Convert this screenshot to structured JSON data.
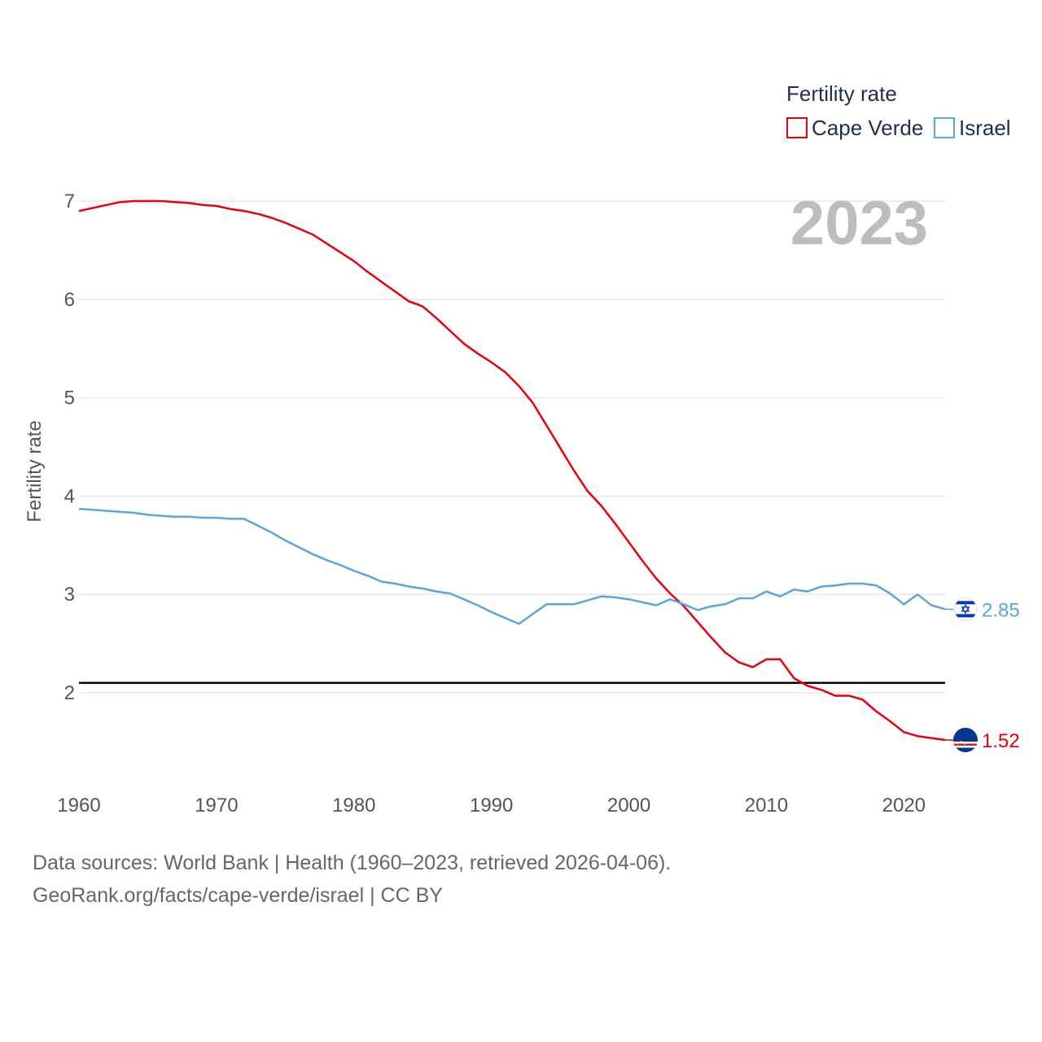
{
  "chart_data": {
    "type": "line",
    "title": "",
    "legend_title": "Fertility rate",
    "year_label": "2023",
    "xlabel": "",
    "ylabel": "Fertility rate",
    "xlim": [
      1960,
      2023
    ],
    "ylim": [
      1.0,
      7.3
    ],
    "xticks": [
      1960,
      1970,
      1980,
      1990,
      2000,
      2010,
      2020
    ],
    "yticks": [
      2,
      3,
      4,
      5,
      6,
      7
    ],
    "reference_line": 2.1,
    "series": [
      {
        "name": "Cape Verde",
        "color": "#e8000b",
        "end_label": "1.52",
        "flag": "cape-verde-flag-icon",
        "x": [
          1960,
          1961,
          1962,
          1963,
          1964,
          1965,
          1966,
          1967,
          1968,
          1969,
          1970,
          1971,
          1972,
          1973,
          1974,
          1975,
          1976,
          1977,
          1978,
          1979,
          1980,
          1981,
          1982,
          1983,
          1984,
          1985,
          1986,
          1987,
          1988,
          1989,
          1990,
          1991,
          1992,
          1993,
          1994,
          1995,
          1996,
          1997,
          1998,
          1999,
          2000,
          2001,
          2002,
          2003,
          2004,
          2005,
          2006,
          2007,
          2008,
          2009,
          2010,
          2011,
          2012,
          2013,
          2014,
          2015,
          2016,
          2017,
          2018,
          2019,
          2020,
          2021,
          2022,
          2023
        ],
        "values": [
          6.9,
          6.93,
          6.96,
          6.99,
          7.0,
          7.0,
          7.0,
          6.99,
          6.98,
          6.96,
          6.95,
          6.92,
          6.9,
          6.87,
          6.83,
          6.78,
          6.72,
          6.66,
          6.57,
          6.48,
          6.39,
          6.28,
          6.18,
          6.08,
          5.98,
          5.93,
          5.81,
          5.68,
          5.55,
          5.45,
          5.36,
          5.26,
          5.12,
          4.95,
          4.72,
          4.49,
          4.26,
          4.05,
          3.9,
          3.72,
          3.53,
          3.34,
          3.16,
          3.01,
          2.88,
          2.72,
          2.56,
          2.41,
          2.31,
          2.26,
          2.34,
          2.34,
          2.15,
          2.07,
          2.03,
          1.97,
          1.97,
          1.93,
          1.81,
          1.71,
          1.6,
          1.56,
          1.54,
          1.52
        ]
      },
      {
        "name": "Israel",
        "color": "#5ba3e3",
        "end_label": "2.85",
        "flag": "israel-flag-icon",
        "x": [
          1960,
          1961,
          1962,
          1963,
          1964,
          1965,
          1966,
          1967,
          1968,
          1969,
          1970,
          1971,
          1972,
          1973,
          1974,
          1975,
          1976,
          1977,
          1978,
          1979,
          1980,
          1981,
          1982,
          1983,
          1984,
          1985,
          1986,
          1987,
          1988,
          1989,
          1990,
          1991,
          1992,
          1993,
          1994,
          1995,
          1996,
          1997,
          1998,
          1999,
          2000,
          2001,
          2002,
          2003,
          2004,
          2005,
          2006,
          2007,
          2008,
          2009,
          2010,
          2011,
          2012,
          2013,
          2014,
          2015,
          2016,
          2017,
          2018,
          2019,
          2020,
          2021,
          2022,
          2023
        ],
        "values": [
          3.87,
          3.86,
          3.85,
          3.84,
          3.83,
          3.81,
          3.8,
          3.79,
          3.79,
          3.78,
          3.78,
          3.77,
          3.77,
          3.7,
          3.63,
          3.55,
          3.48,
          3.41,
          3.35,
          3.3,
          3.24,
          3.19,
          3.13,
          3.11,
          3.08,
          3.06,
          3.03,
          3.01,
          2.95,
          2.89,
          2.82,
          2.76,
          2.7,
          2.8,
          2.9,
          2.9,
          2.9,
          2.94,
          2.98,
          2.97,
          2.95,
          2.92,
          2.89,
          2.95,
          2.9,
          2.84,
          2.88,
          2.9,
          2.96,
          2.96,
          3.03,
          2.98,
          3.05,
          3.03,
          3.08,
          3.09,
          3.11,
          3.11,
          3.09,
          3.01,
          2.9,
          3.0,
          2.89,
          2.85
        ]
      }
    ]
  },
  "footer": {
    "source_line": "Data sources: World Bank | Health (1960–2023, retrieved 2026-04-06).",
    "credit_line": "GeoRank.org/facts/cape-verde/israel | CC BY"
  }
}
